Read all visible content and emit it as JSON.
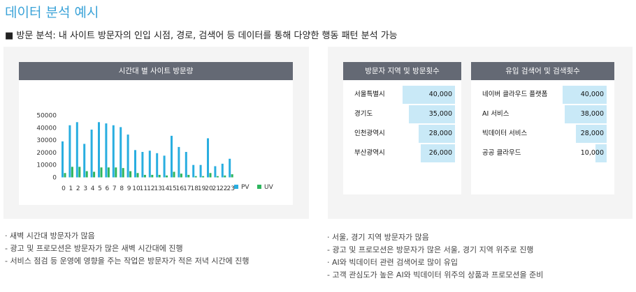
{
  "page_title": "데이터 분석 예시",
  "section_heading": "■ 방문 분석: 내 사이트 방문자의 인입 시점, 경로, 검색어 등 데이터를 통해 다양한 행동 패턴 분석 가능",
  "left_panel": {
    "chart_title": "시간대 별 사이트 방문량",
    "notes": [
      "· 새벽 시간대 방문자가 많음",
      "- 광고 및 프로모션은 방문자가 많은 새벽 시간대에 진행",
      "- 서비스 점검 등 운영에 영향을 주는 작업은 방문자가 적은 저녁 시간에 진행"
    ]
  },
  "right_panel": {
    "notes": [
      "· 서울, 경기 지역 방문자가 많음",
      "- 광고 및 프로모션은 방문자가 많은 서울, 경기 지역 위주로 진행",
      "· AI와 빅데이터 관련 검색어로 많이 유입",
      "- 고객 관심도가 높은 AI와 빅데이터 위주의 상품과 프로모션을 준비"
    ]
  },
  "chart_data": [
    {
      "type": "bar",
      "title": "시간대 별 사이트 방문량",
      "categories": [
        "0",
        "1",
        "2",
        "3",
        "4",
        "5",
        "6",
        "7",
        "8",
        "9",
        "10",
        "11",
        "12",
        "13",
        "14",
        "15",
        "16",
        "17",
        "18",
        "19",
        "20",
        "21",
        "22",
        "23"
      ],
      "series": [
        {
          "name": "PV",
          "color": "#29aee0",
          "values": [
            29000,
            42000,
            44500,
            27000,
            38500,
            44500,
            43500,
            42000,
            40500,
            34500,
            22000,
            20500,
            21500,
            19500,
            17500,
            33500,
            24500,
            20500,
            10000,
            10000,
            31500,
            9000,
            11000,
            15000
          ]
        },
        {
          "name": "UV",
          "color": "#2db55d",
          "values": [
            3500,
            8500,
            8500,
            5000,
            4500,
            8000,
            8000,
            8000,
            7500,
            5000,
            3500,
            2000,
            2000,
            2000,
            1500,
            4500,
            3000,
            2000,
            1000,
            1000,
            3500,
            1000,
            1500,
            2500
          ]
        }
      ],
      "y_ticks": [
        "0",
        "10000",
        "20000",
        "30000",
        "40000",
        "50000"
      ],
      "ylim": [
        0,
        50000
      ],
      "grid": false,
      "legend": "bottom-right"
    },
    {
      "type": "bar",
      "orientation": "horizontal",
      "title": "방문자 지역 및 방문횟수",
      "color": "#c9e9f7",
      "categories": [
        "서울특별시",
        "경기도",
        "인천광역시",
        "부산광역시"
      ],
      "values": [
        40000,
        35000,
        28000,
        26000
      ],
      "value_labels": [
        "40,000",
        "35,000",
        "28,000",
        "26,000"
      ],
      "xlim": [
        0,
        40000
      ]
    },
    {
      "type": "bar",
      "orientation": "horizontal",
      "title": "유입 검색어 및 검색횟수",
      "color": "#c9e9f7",
      "categories": [
        "네이버 클라우드 플랫폼",
        "AI 서비스",
        "빅데이터 서비스",
        "공공 클라우드"
      ],
      "values": [
        40000,
        38000,
        28000,
        10000
      ],
      "value_labels": [
        "40,000",
        "38,000",
        "28,000",
        "10,000"
      ],
      "xlim": [
        0,
        40000
      ]
    }
  ]
}
